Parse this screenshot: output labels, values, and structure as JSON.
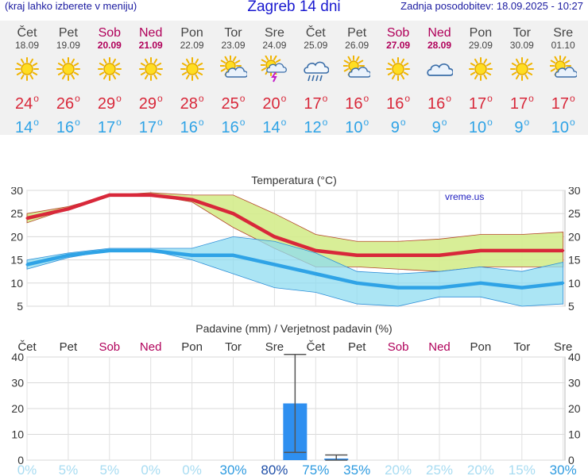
{
  "header": {
    "hint": "(kraj lahko izberete v meniju)",
    "title": "Zagreb 14 dni",
    "updated": "Zadnja posodobitev: 18.09.2025 - 10:27"
  },
  "days": [
    {
      "name": "Čet",
      "date": "18.09",
      "weekend": false,
      "icon": "sun-icon",
      "tmax": "24",
      "tmin": "14"
    },
    {
      "name": "Pet",
      "date": "19.09",
      "weekend": false,
      "icon": "sun-icon",
      "tmax": "26",
      "tmin": "16"
    },
    {
      "name": "Sob",
      "date": "20.09",
      "weekend": true,
      "icon": "sun-icon",
      "tmax": "29",
      "tmin": "17"
    },
    {
      "name": "Ned",
      "date": "21.09",
      "weekend": true,
      "icon": "sun-icon",
      "tmax": "29",
      "tmin": "17"
    },
    {
      "name": "Pon",
      "date": "22.09",
      "weekend": false,
      "icon": "sun-icon",
      "tmax": "28",
      "tmin": "16"
    },
    {
      "name": "Tor",
      "date": "23.09",
      "weekend": false,
      "icon": "sun-cloud-icon",
      "tmax": "25",
      "tmin": "16"
    },
    {
      "name": "Sre",
      "date": "24.09",
      "weekend": false,
      "icon": "sun-cloud-storm-icon",
      "tmax": "20",
      "tmin": "14"
    },
    {
      "name": "Čet",
      "date": "25.09",
      "weekend": false,
      "icon": "rain-cloud-icon",
      "tmax": "17",
      "tmin": "12"
    },
    {
      "name": "Pet",
      "date": "26.09",
      "weekend": false,
      "icon": "sun-cloud-icon",
      "tmax": "16",
      "tmin": "10"
    },
    {
      "name": "Sob",
      "date": "27.09",
      "weekend": true,
      "icon": "sun-icon",
      "tmax": "16",
      "tmin": "9"
    },
    {
      "name": "Ned",
      "date": "28.09",
      "weekend": true,
      "icon": "cloud-icon",
      "tmax": "16",
      "tmin": "9"
    },
    {
      "name": "Pon",
      "date": "29.09",
      "weekend": false,
      "icon": "sun-icon",
      "tmax": "17",
      "tmin": "10"
    },
    {
      "name": "Tor",
      "date": "30.09",
      "weekend": false,
      "icon": "sun-icon",
      "tmax": "17",
      "tmin": "9"
    },
    {
      "name": "Sre",
      "date": "01.10",
      "weekend": false,
      "icon": "sun-cloud-icon",
      "tmax": "17",
      "tmin": "10"
    }
  ],
  "colors": {
    "max": "#d8283a",
    "min": "#2fa3e6",
    "weekend": "#b0005a",
    "precip": "#2e8ff0",
    "bandMax": "#d4ec8c",
    "bandMin": "#8fdcf0",
    "prob": "#2fa3e6"
  },
  "chart_data": [
    {
      "type": "line",
      "title": "Temperatura (°C)",
      "watermark": "vreme.us",
      "categories": [
        "Čet",
        "Pet",
        "Sob",
        "Ned",
        "Pon",
        "Tor",
        "Sre",
        "Čet",
        "Pet",
        "Sob",
        "Ned",
        "Pon",
        "Tor",
        "Sre"
      ],
      "ylim": [
        5,
        30
      ],
      "yticks": [
        5,
        10,
        15,
        20,
        25,
        30
      ],
      "grid": true,
      "series": [
        {
          "values": [
            24,
            26,
            29,
            29,
            28,
            25,
            20,
            17,
            16,
            16,
            16,
            17,
            17,
            17
          ]
        },
        {
          "values": [
            14,
            16,
            17,
            17,
            16,
            16,
            14,
            12,
            10,
            9,
            9,
            10,
            9,
            10
          ]
        }
      ],
      "bands": [
        {
          "upper": [
            25,
            26.5,
            29,
            29.5,
            29,
            29,
            25,
            20.5,
            19,
            19,
            19.5,
            20.5,
            20.5,
            21
          ],
          "lower": [
            23,
            26,
            29,
            29,
            27.5,
            22,
            17.5,
            13.5,
            13.5,
            13,
            12.5,
            13.5,
            13.5,
            13.5
          ]
        },
        {
          "upper": [
            15,
            16.5,
            17.5,
            17.5,
            17.5,
            20,
            19,
            16.5,
            12.5,
            12,
            12.5,
            13.5,
            12.5,
            14.5
          ],
          "lower": [
            13,
            15.5,
            17,
            17,
            15,
            12,
            9,
            8,
            5.5,
            5,
            7,
            7,
            5,
            5.5
          ]
        }
      ]
    },
    {
      "type": "bar",
      "title": "Padavine (mm) / Verjetnost padavin (%)",
      "categories": [
        "Čet",
        "Pet",
        "Sob",
        "Ned",
        "Pon",
        "Tor",
        "Sre",
        "Čet",
        "Pet",
        "Sob",
        "Ned",
        "Pon",
        "Tor",
        "Sre"
      ],
      "ylim": [
        0,
        40
      ],
      "yticks": [
        0,
        10,
        20,
        30,
        40
      ],
      "values": [
        0,
        0,
        0,
        0,
        0,
        0,
        22,
        0.5,
        0,
        0,
        0,
        0,
        0,
        0
      ],
      "error_bars": [
        null,
        null,
        null,
        null,
        null,
        null,
        [
          3,
          41
        ],
        [
          0,
          2
        ],
        null,
        null,
        null,
        null,
        null,
        null
      ],
      "probability": [
        "0%",
        "5%",
        "5%",
        "0%",
        "0%",
        "30%",
        "80%",
        "75%",
        "35%",
        "20%",
        "25%",
        "20%",
        "15%",
        "30%"
      ]
    }
  ]
}
